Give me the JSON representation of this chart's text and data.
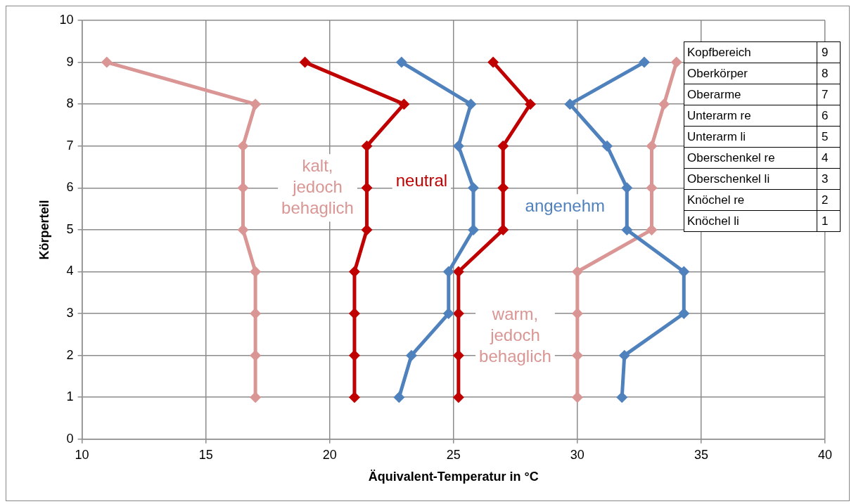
{
  "chart_data": {
    "type": "line",
    "xlabel": "Äquivalent-Temperatur in °C",
    "ylabel": "Körperteil",
    "xlim": [
      10,
      40
    ],
    "xticks": [
      10,
      15,
      20,
      25,
      30,
      35,
      40
    ],
    "ylim": [
      0,
      10
    ],
    "yticks": [
      0,
      1,
      2,
      3,
      4,
      5,
      6,
      7,
      8,
      9,
      10
    ],
    "grid": true,
    "legend": false,
    "marker": "diamond",
    "line_style": "solid",
    "series": [
      {
        "color": "#d99694",
        "x": [
          17,
          17,
          17,
          17,
          16.5,
          16.5,
          16.5,
          17,
          11
        ],
        "values": [
          1,
          2,
          3,
          4,
          5,
          6,
          7,
          8,
          9
        ]
      },
      {
        "color": "#c00000",
        "x": [
          21,
          21,
          21,
          21,
          21.5,
          21.5,
          21.5,
          23,
          19
        ],
        "values": [
          1,
          2,
          3,
          4,
          5,
          6,
          7,
          8,
          9
        ]
      },
      {
        "color": "#4f81bd",
        "x": [
          22.8,
          23.3,
          24.8,
          24.8,
          25.8,
          25.8,
          25.2,
          25.7,
          22.9
        ],
        "values": [
          1,
          2,
          3,
          4,
          5,
          6,
          7,
          8,
          9
        ]
      },
      {
        "color": "#c00000",
        "x": [
          25.2,
          25.2,
          25.2,
          25.2,
          27,
          27,
          27,
          28.1,
          26.6
        ],
        "values": [
          1,
          2,
          3,
          4,
          5,
          6,
          7,
          8,
          9
        ]
      },
      {
        "color": "#4f81bd",
        "x": [
          31.8,
          31.9,
          34.3,
          34.3,
          32,
          32,
          31.2,
          29.7,
          32.7
        ],
        "values": [
          1,
          2,
          3,
          4,
          5,
          6,
          7,
          8,
          9
        ]
      },
      {
        "color": "#d99694",
        "x": [
          30,
          30,
          30,
          30,
          33,
          33,
          33,
          33.5,
          34
        ],
        "values": [
          1,
          2,
          3,
          4,
          5,
          6,
          7,
          8,
          9
        ]
      }
    ],
    "annotations": [
      "kalt,\njedoch\nbehaglich",
      "neutral",
      "angenehm",
      "warm,\njedoch\nbehaglich",
      "Kopfbereich 9",
      "Oberkörper 8",
      "Oberarme 7",
      "Unterarm re 6",
      "Unterarm li 5",
      "Oberschenkel re 4",
      "Oberschenkel li 3",
      "Knöchel re 2",
      "Knöchel li 1"
    ]
  }
}
